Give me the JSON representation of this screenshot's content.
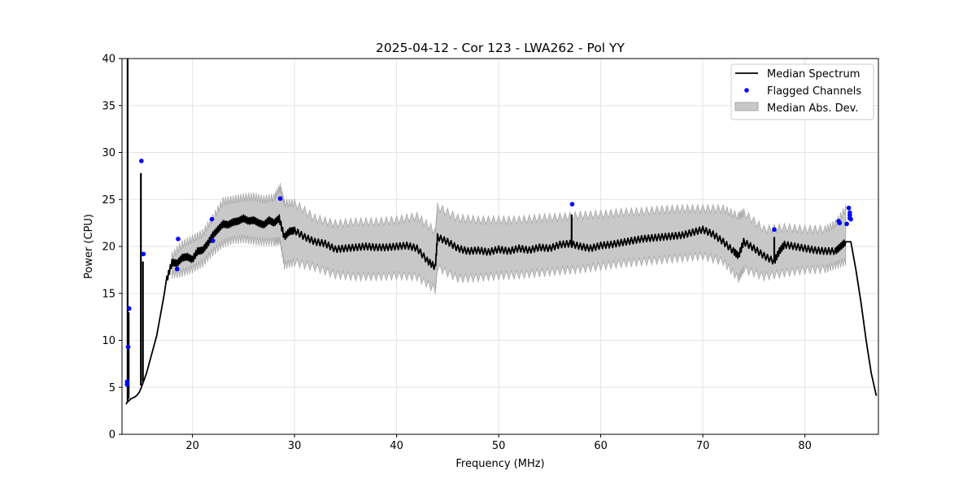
{
  "chart_data": {
    "type": "line",
    "title": "2025-04-12 - Cor 123 - LWA262 - Pol YY",
    "xlabel": "Frequency (MHz)",
    "ylabel": "Power (CPU)",
    "xlim": [
      13.1,
      87.2
    ],
    "ylim": [
      0,
      40
    ],
    "xticks": [
      20,
      30,
      40,
      50,
      60,
      70,
      80
    ],
    "yticks": [
      0,
      5,
      10,
      15,
      20,
      25,
      30,
      35,
      40
    ],
    "grid": true,
    "legend_position": "top-right",
    "colors": {
      "median": "#000000",
      "flagged": "#0000ff",
      "mad_fill": "#c8c8c8",
      "mad_edge": "#a8a8a8"
    },
    "series": [
      {
        "name": "Median Spectrum",
        "kind": "line",
        "x": [
          13.5,
          13.6,
          13.7,
          13.8,
          13.9,
          14.0,
          14.2,
          14.4,
          14.6,
          14.8,
          15.0,
          15.5,
          16.0,
          16.5,
          17.0,
          17.5,
          18.0,
          18.5,
          19.0,
          19.5,
          20.0,
          20.5,
          21.0,
          21.5,
          22.0,
          22.5,
          23.0,
          23.5,
          24.0,
          24.5,
          25.0,
          25.5,
          26.0,
          26.5,
          27.0,
          27.5,
          28.0,
          28.5,
          29.0,
          29.5,
          30.0,
          31.0,
          32.0,
          33.0,
          34.0,
          35.0,
          36.0,
          37.0,
          38.0,
          39.0,
          40.0,
          41.0,
          42.0,
          43.0,
          43.8,
          44.0,
          45.0,
          46.0,
          47.0,
          48.0,
          49.0,
          50.0,
          51.0,
          52.0,
          53.0,
          54.0,
          55.0,
          56.0,
          57.0,
          58.0,
          59.0,
          60.0,
          61.0,
          62.0,
          63.0,
          64.0,
          65.0,
          66.0,
          67.0,
          68.0,
          69.0,
          70.0,
          71.0,
          72.0,
          73.0,
          73.5,
          74.0,
          75.0,
          76.0,
          77.0,
          77.5,
          78.0,
          79.0,
          80.0,
          81.0,
          82.0,
          83.0,
          83.5,
          84.0,
          84.5,
          85.0,
          85.5,
          86.0,
          86.5,
          87.0
        ],
        "y": [
          3.2,
          3.4,
          3.5,
          3.6,
          3.7,
          3.8,
          3.9,
          4.0,
          4.2,
          4.5,
          5.0,
          6.5,
          8.5,
          10.5,
          13.5,
          16.5,
          18.3,
          18.2,
          18.8,
          18.9,
          18.6,
          19.5,
          19.6,
          20.3,
          21.2,
          21.8,
          22.4,
          22.3,
          22.6,
          22.7,
          23.0,
          22.7,
          22.8,
          22.5,
          22.3,
          22.8,
          22.5,
          23.0,
          21.0,
          21.6,
          21.7,
          21.0,
          20.5,
          20.3,
          19.7,
          19.8,
          19.9,
          20.0,
          19.9,
          19.9,
          20.0,
          20.1,
          19.8,
          18.5,
          17.8,
          21.0,
          20.5,
          19.8,
          19.5,
          19.6,
          19.4,
          19.7,
          19.5,
          19.8,
          19.6,
          19.9,
          19.8,
          20.2,
          20.3,
          20.0,
          19.8,
          20.1,
          20.2,
          20.4,
          20.6,
          20.8,
          20.9,
          21.0,
          21.1,
          21.2,
          21.5,
          21.8,
          21.3,
          20.5,
          19.5,
          19.0,
          20.5,
          19.8,
          19.0,
          18.4,
          19.5,
          20.2,
          20.0,
          19.8,
          19.6,
          19.5,
          19.5,
          20.0,
          20.5,
          20.5,
          17.5,
          14.0,
          10.0,
          6.5,
          4.1
        ]
      },
      {
        "name": "Flagged Channels",
        "kind": "scatter",
        "x": [
          13.6,
          13.6,
          13.7,
          13.8,
          15.0,
          15.2,
          18.6,
          18.5,
          21.9,
          22.0,
          28.6,
          57.2,
          77.0,
          83.3,
          83.4,
          84.1,
          84.3,
          84.4,
          84.4,
          84.4,
          84.5
        ],
        "y": [
          5.3,
          5.6,
          9.3,
          13.4,
          29.1,
          19.2,
          20.8,
          17.6,
          22.9,
          20.6,
          25.1,
          24.5,
          21.8,
          22.7,
          22.5,
          22.4,
          24.1,
          23.6,
          23.3,
          23.0,
          22.9
        ]
      },
      {
        "name": "Median Abs. Dev.",
        "kind": "area",
        "x": [
          18.0,
          19.0,
          20.0,
          21.0,
          22.0,
          23.0,
          24.0,
          25.0,
          26.0,
          27.0,
          28.0,
          28.6,
          29.0,
          30.0,
          32.0,
          34.0,
          36.0,
          38.0,
          40.0,
          42.0,
          43.8,
          44.0,
          46.0,
          48.0,
          50.0,
          52.0,
          54.0,
          56.0,
          58.0,
          60.0,
          62.0,
          64.0,
          66.0,
          68.0,
          70.0,
          72.0,
          73.5,
          74.0,
          76.0,
          78.0,
          80.0,
          82.0,
          83.0,
          84.0
        ],
        "lower": [
          17.0,
          17.2,
          17.6,
          18.2,
          19.4,
          20.3,
          20.7,
          20.8,
          20.6,
          20.5,
          20.5,
          20.6,
          18.0,
          18.3,
          17.8,
          17.0,
          16.8,
          16.8,
          16.9,
          16.8,
          15.4,
          17.8,
          16.6,
          16.7,
          16.9,
          17.0,
          17.2,
          17.4,
          17.6,
          17.9,
          18.2,
          18.4,
          18.6,
          18.8,
          19.0,
          18.4,
          16.6,
          17.6,
          16.8,
          17.2,
          17.5,
          17.6,
          18.0,
          18.4
        ],
        "upper": [
          19.0,
          20.2,
          20.8,
          21.4,
          23.0,
          24.8,
          25.0,
          25.2,
          25.3,
          25.0,
          25.2,
          26.3,
          24.6,
          24.6,
          23.0,
          22.4,
          22.6,
          22.6,
          22.8,
          23.2,
          21.6,
          24.2,
          23.0,
          22.8,
          22.8,
          22.8,
          23.0,
          23.1,
          23.3,
          23.4,
          23.6,
          23.7,
          23.9,
          24.0,
          24.0,
          24.0,
          23.2,
          23.6,
          21.8,
          22.0,
          21.8,
          21.8,
          22.4,
          24.0
        ]
      }
    ],
    "spikes": [
      {
        "x": 13.65,
        "from": 3.5,
        "to": 40
      },
      {
        "x": 13.75,
        "from": 3.8,
        "to": 13.0
      },
      {
        "x": 14.95,
        "from": 5.2,
        "to": 27.8
      },
      {
        "x": 15.15,
        "from": 5.6,
        "to": 18.4
      },
      {
        "x": 57.15,
        "from": 19.9,
        "to": 23.4
      },
      {
        "x": 77.0,
        "from": 18.4,
        "to": 21.0
      }
    ],
    "legend": [
      {
        "label": "Median Spectrum",
        "kind": "line"
      },
      {
        "label": "Flagged Channels",
        "kind": "point"
      },
      {
        "label": "Median Abs. Dev.",
        "kind": "patch"
      }
    ]
  }
}
